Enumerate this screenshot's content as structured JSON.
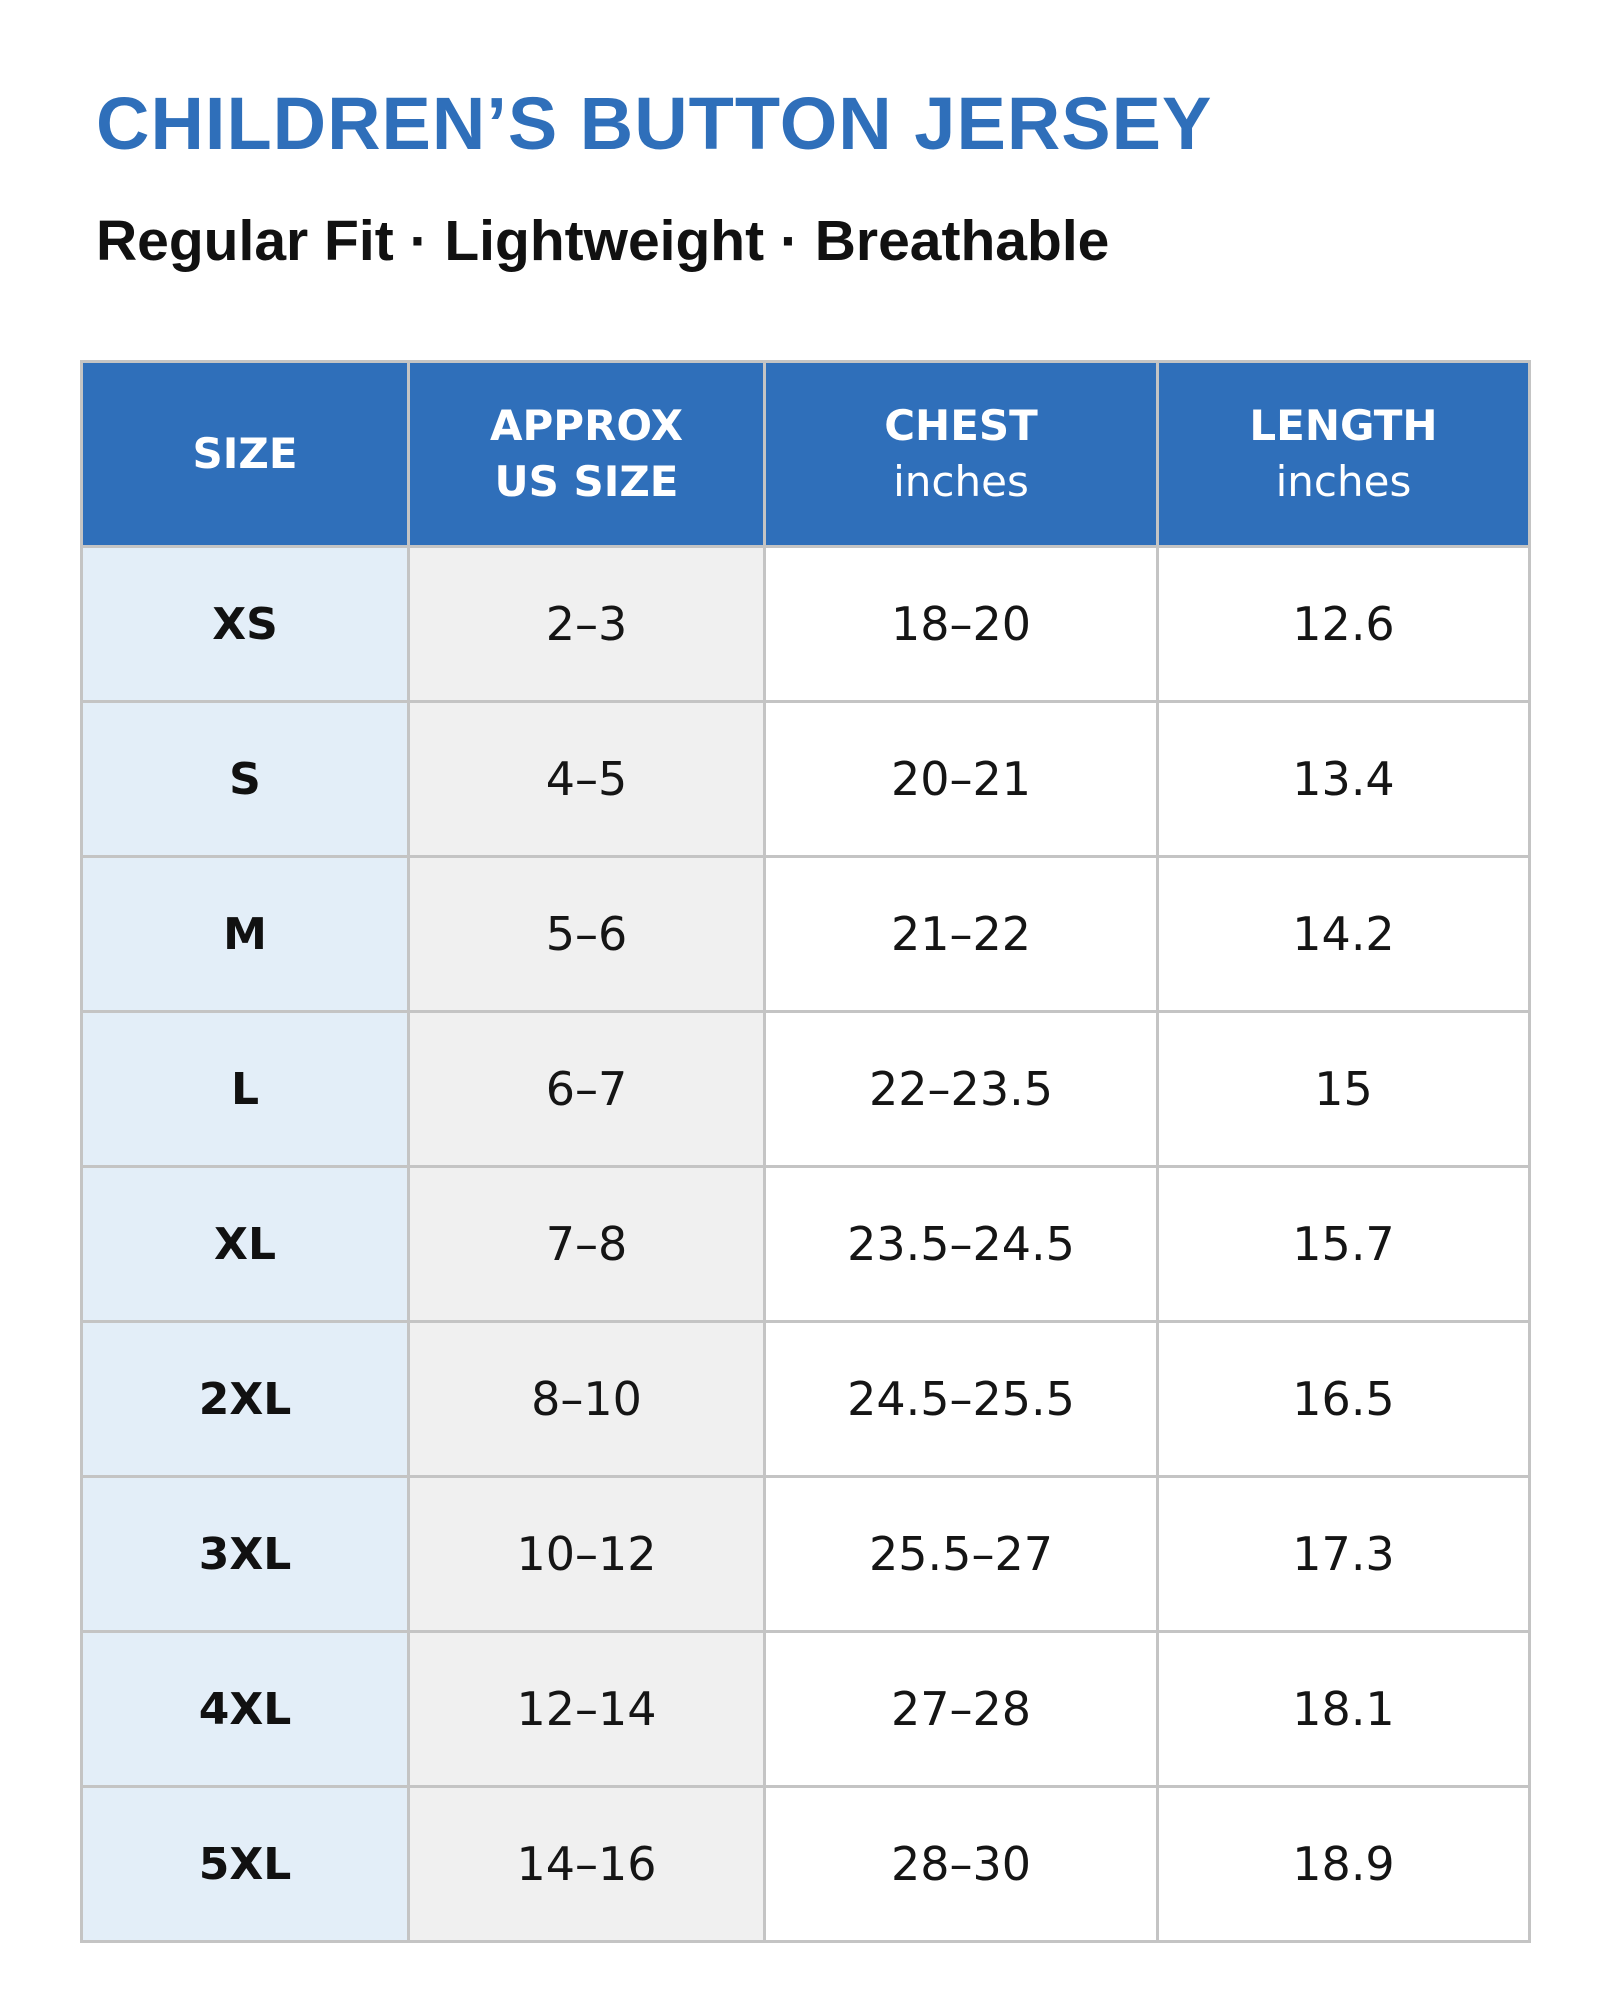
{
  "header": {
    "title": "CHILDREN’S BUTTON JERSEY",
    "subtitle": "Regular Fit · Lightweight · Breathable"
  },
  "colors": {
    "title": "#2f6fba",
    "header_bg": "#2f6fba",
    "size_column_bg": "#e3eef8",
    "us_column_bg": "#f0f0f0",
    "border": "#c4c4c4"
  },
  "table": {
    "columns": [
      {
        "label": "SIZE",
        "label2": "",
        "unit": ""
      },
      {
        "label": "APPROX",
        "label2": "US SIZE",
        "unit": ""
      },
      {
        "label": "CHEST",
        "label2": "",
        "unit": "inches"
      },
      {
        "label": "LENGTH",
        "label2": "",
        "unit": "inches"
      }
    ],
    "rows": [
      {
        "size": "XS",
        "us": "2–3",
        "chest": "18–20",
        "length": "12.6"
      },
      {
        "size": "S",
        "us": "4–5",
        "chest": "20–21",
        "length": "13.4"
      },
      {
        "size": "M",
        "us": "5–6",
        "chest": "21–22",
        "length": "14.2"
      },
      {
        "size": "L",
        "us": "6–7",
        "chest": "22–23.5",
        "length": "15"
      },
      {
        "size": "XL",
        "us": "7–8",
        "chest": "23.5–24.5",
        "length": "15.7"
      },
      {
        "size": "2XL",
        "us": "8–10",
        "chest": "24.5–25.5",
        "length": "16.5"
      },
      {
        "size": "3XL",
        "us": "10–12",
        "chest": "25.5–27",
        "length": "17.3"
      },
      {
        "size": "4XL",
        "us": "12–14",
        "chest": "27–28",
        "length": "18.1"
      },
      {
        "size": "5XL",
        "us": "14–16",
        "chest": "28–30",
        "length": "18.9"
      }
    ]
  }
}
